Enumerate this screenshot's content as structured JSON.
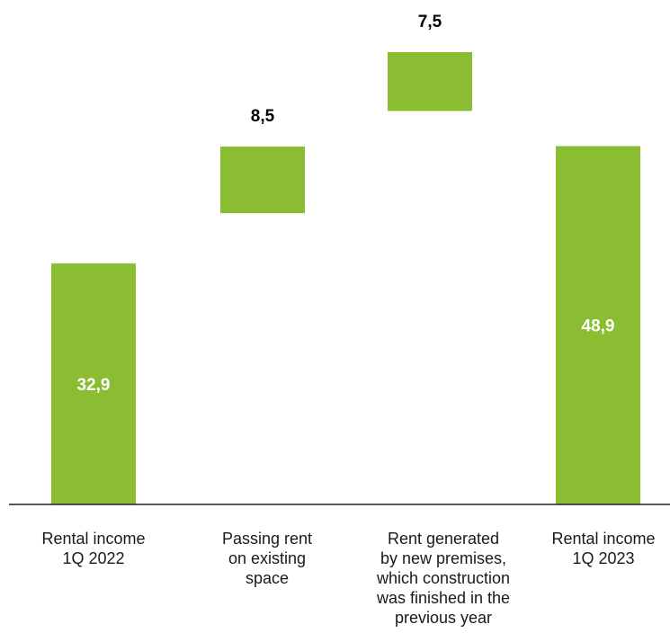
{
  "chart_data": {
    "type": "bar",
    "subtype": "waterfall",
    "title": "",
    "categories": [
      "Rental income\n1Q 2022",
      "Passing rent\non existing\nspace",
      "Rent generated\nby new premises,\nwhich construction\nwas finished in the\nprevious year",
      "Rental income\n1Q 2023"
    ],
    "bars": [
      {
        "kind": "total",
        "value": 32.9,
        "label": "32,9"
      },
      {
        "kind": "delta",
        "value": 8.5,
        "label": "8,5"
      },
      {
        "kind": "delta",
        "value": 7.5,
        "label": "7,5"
      },
      {
        "kind": "total",
        "value": 48.9,
        "label": "48,9"
      }
    ],
    "ylim": [
      0,
      50
    ],
    "grid": false,
    "legend": "none",
    "colors": {
      "bar": "#8ABD31",
      "inside_label": "#ffffff",
      "outside_label": "#000000",
      "axis": "#222222"
    }
  }
}
